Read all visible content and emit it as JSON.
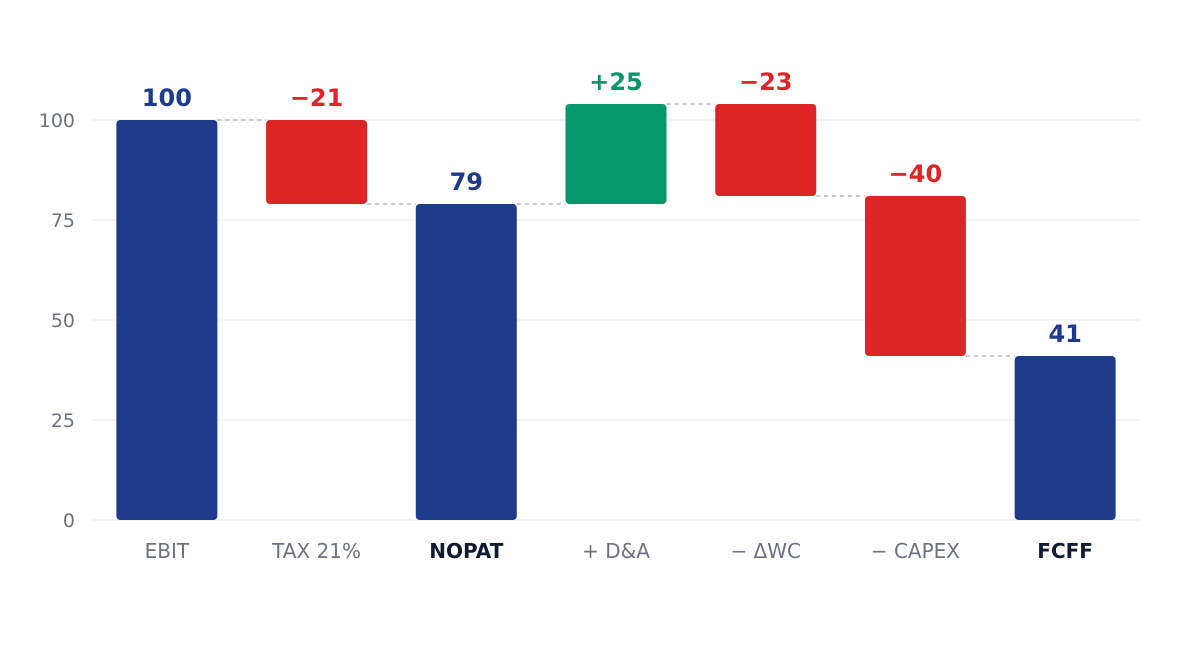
{
  "chart_data": {
    "type": "bar",
    "subtype": "waterfall",
    "title": "",
    "xlabel": "",
    "ylabel": "",
    "ylim": [
      0,
      110
    ],
    "yticks": [
      0,
      25,
      50,
      75,
      100
    ],
    "grid": true,
    "legend": "none",
    "categories": [
      "EBIT",
      "TAX 21%",
      "NOPAT",
      "+ D&A",
      "− ΔWC",
      "− CAPEX",
      "FCFF"
    ],
    "steps": [
      {
        "category": "EBIT",
        "kind": "total",
        "value": 100,
        "label": "100"
      },
      {
        "category": "TAX 21%",
        "kind": "delta",
        "value": -21,
        "label": "−21"
      },
      {
        "category": "NOPAT",
        "kind": "total",
        "value": 79,
        "label": "79"
      },
      {
        "category": "+ D&A",
        "kind": "delta",
        "value": 25,
        "label": "+25"
      },
      {
        "category": "− ΔWC",
        "kind": "delta",
        "value": -23,
        "label": "−23"
      },
      {
        "category": "− CAPEX",
        "kind": "delta",
        "value": -40,
        "label": "−40"
      },
      {
        "category": "FCFF",
        "kind": "total",
        "value": 41,
        "label": "41"
      }
    ],
    "colors": {
      "total": "#1e3a8a",
      "increase": "#059669",
      "decrease": "#dc2626"
    }
  }
}
